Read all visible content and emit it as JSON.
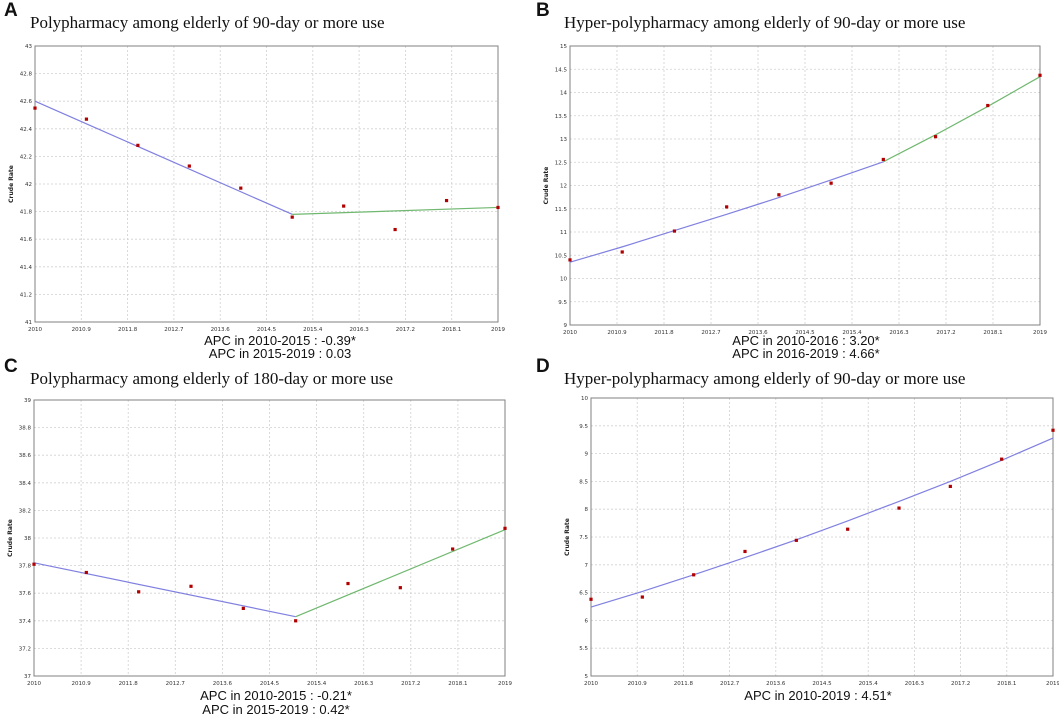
{
  "panels": [
    {
      "letter": "A",
      "title": "Polypharmacy among elderly of 90-day or more use",
      "apc_lines": [
        "APC in 2010-2015 : -0.39*",
        "APC in 2015-2019 : 0.03"
      ],
      "color_line1": "#8080e0",
      "color_line2": "#80c080"
    },
    {
      "letter": "B",
      "title": "Hyper-polypharmacy among elderly of 90-day or more use",
      "apc_lines": [
        "APC in 2010-2016 : 3.20*",
        "APC in 2016-2019 : 4.66*"
      ]
    },
    {
      "letter": "C",
      "title": "Polypharmacy among elderly of 180-day or more use",
      "apc_lines": [
        "APC in 2010-2015 : -0.21*",
        "APC in 2015-2019 : 0.42*"
      ]
    },
    {
      "letter": "D",
      "title": "Hyper-polypharmacy among elderly of 90-day or more use",
      "apc_lines": [
        "APC in 2010-2019 : 4.51*"
      ]
    }
  ],
  "colors": {
    "point": "#b00000",
    "segment1": "#8080e0",
    "segment2": "#70b870",
    "grid": "#d0d0d0",
    "frame": "#808080"
  },
  "chart_data": [
    {
      "type": "scatter",
      "title": "Polypharmacy among elderly of 90-day or more use",
      "ylabel": "Crude Rate",
      "xlabel": "",
      "xlim": [
        2010,
        2019
      ],
      "ylim": [
        41,
        43
      ],
      "xticks": [
        2010,
        2010.9,
        2011.8,
        2012.7,
        2013.6,
        2014.5,
        2015.4,
        2016.3,
        2017.2,
        2018.1,
        2019
      ],
      "xtick_labels": [
        "2010",
        "2010.9",
        "2011.8",
        "2012.7",
        "2013.6",
        "2014.5",
        "2015.4",
        "2016.3",
        "2017.2",
        "2018.1",
        "2019"
      ],
      "yticks": [
        41,
        41.2,
        41.4,
        41.6,
        41.8,
        42,
        42.2,
        42.4,
        42.6,
        42.8,
        43
      ],
      "ytick_labels": [
        "41",
        "41.2",
        "41.4",
        "41.6",
        "41.8",
        "42",
        "42.2",
        "42.4",
        "42.6",
        "42.8",
        "43"
      ],
      "points": {
        "x": [
          2010,
          2011,
          2012,
          2013,
          2014,
          2015,
          2016,
          2017,
          2018,
          2019
        ],
        "y": [
          42.55,
          42.47,
          42.28,
          42.13,
          41.97,
          41.76,
          41.84,
          41.67,
          41.88,
          41.83
        ]
      },
      "segments": [
        {
          "name": "2010-2015",
          "x": [
            2010,
            2015
          ],
          "y": [
            42.6,
            41.78
          ]
        },
        {
          "name": "2015-2019",
          "x": [
            2015,
            2019
          ],
          "y": [
            41.78,
            41.83
          ]
        }
      ]
    },
    {
      "type": "scatter",
      "title": "Hyper-polypharmacy among elderly of 90-day or more use",
      "ylabel": "Crude Rate",
      "xlabel": "",
      "xlim": [
        2010,
        2019
      ],
      "ylim": [
        9,
        15
      ],
      "xticks": [
        2010,
        2010.9,
        2011.8,
        2012.7,
        2013.6,
        2014.5,
        2015.4,
        2016.3,
        2017.2,
        2018.1,
        2019
      ],
      "xtick_labels": [
        "2010",
        "2010.9",
        "2011.8",
        "2012.7",
        "2013.6",
        "2014.5",
        "2015.4",
        "2016.3",
        "2017.2",
        "2018.1",
        "2019"
      ],
      "yticks": [
        9,
        9.5,
        10,
        10.5,
        11,
        11.5,
        12,
        12.5,
        13,
        13.5,
        14,
        14.5,
        15
      ],
      "ytick_labels": [
        "9",
        "9.5",
        "10",
        "10.5",
        "11",
        "11.5",
        "12",
        "12.5",
        "13",
        "13.5",
        "14",
        "14.5",
        "15"
      ],
      "points": {
        "x": [
          2010,
          2011,
          2012,
          2013,
          2014,
          2015,
          2016,
          2017,
          2018,
          2019
        ],
        "y": [
          10.4,
          10.57,
          11.02,
          11.54,
          11.8,
          12.05,
          12.56,
          13.05,
          13.72,
          14.37
        ]
      },
      "segments": [
        {
          "name": "2010-2016",
          "x": [
            2010,
            2011,
            2012,
            2013,
            2014,
            2015,
            2016
          ],
          "y": [
            10.35,
            10.68,
            11.03,
            11.38,
            11.74,
            12.12,
            12.51
          ]
        },
        {
          "name": "2016-2019",
          "x": [
            2016,
            2017,
            2018,
            2019
          ],
          "y": [
            12.51,
            13.09,
            13.7,
            14.34
          ]
        }
      ]
    },
    {
      "type": "scatter",
      "title": "Polypharmacy among elderly of 180-day or more use",
      "ylabel": "Crude Rate",
      "xlabel": "",
      "xlim": [
        2010,
        2019
      ],
      "ylim": [
        37,
        39
      ],
      "xticks": [
        2010,
        2010.9,
        2011.8,
        2012.7,
        2013.6,
        2014.5,
        2015.4,
        2016.3,
        2017.2,
        2018.1,
        2019
      ],
      "xtick_labels": [
        "2010",
        "2010.9",
        "2011.8",
        "2012.7",
        "2013.6",
        "2014.5",
        "2015.4",
        "2016.3",
        "2017.2",
        "2018.1",
        "2019"
      ],
      "yticks": [
        37,
        37.2,
        37.4,
        37.6,
        37.8,
        38,
        38.2,
        38.4,
        38.6,
        38.8,
        39
      ],
      "ytick_labels": [
        "37",
        "37.2",
        "37.4",
        "37.6",
        "37.8",
        "38",
        "38.2",
        "38.4",
        "38.6",
        "38.8",
        "39"
      ],
      "points": {
        "x": [
          2010,
          2011,
          2012,
          2013,
          2014,
          2015,
          2016,
          2017,
          2018,
          2019
        ],
        "y": [
          37.81,
          37.75,
          37.61,
          37.65,
          37.49,
          37.4,
          37.67,
          37.64,
          37.92,
          38.07
        ]
      },
      "segments": [
        {
          "name": "2010-2015",
          "x": [
            2010,
            2015
          ],
          "y": [
            37.82,
            37.43
          ]
        },
        {
          "name": "2015-2019",
          "x": [
            2015,
            2019
          ],
          "y": [
            37.43,
            38.06
          ]
        }
      ]
    },
    {
      "type": "scatter",
      "title": "Hyper-polypharmacy among elderly of 90-day or more use",
      "ylabel": "Crude Rate",
      "xlabel": "",
      "xlim": [
        2010,
        2019
      ],
      "ylim": [
        5,
        10
      ],
      "xticks": [
        2010,
        2010.9,
        2011.8,
        2012.7,
        2013.6,
        2014.5,
        2015.4,
        2016.3,
        2017.2,
        2018.1,
        2019
      ],
      "xtick_labels": [
        "2010",
        "2010.9",
        "2011.8",
        "2012.7",
        "2013.6",
        "2014.5",
        "2015.4",
        "2016.3",
        "2017.2",
        "2018.1",
        "2019"
      ],
      "yticks": [
        5,
        5.5,
        6,
        6.5,
        7,
        7.5,
        8,
        8.5,
        9,
        9.5,
        10
      ],
      "ytick_labels": [
        "5",
        "5.5",
        "6",
        "6.5",
        "7",
        "7.5",
        "8",
        "8.5",
        "9",
        "9.5",
        "10"
      ],
      "points": {
        "x": [
          2010,
          2011,
          2012,
          2013,
          2014,
          2015,
          2016,
          2017,
          2018,
          2019
        ],
        "y": [
          6.38,
          6.42,
          6.82,
          7.24,
          7.44,
          7.64,
          8.02,
          8.41,
          8.9,
          9.42
        ]
      },
      "segments": [
        {
          "name": "2010-2019",
          "x": [
            2010,
            2011,
            2012,
            2013,
            2014,
            2015,
            2016,
            2017,
            2018,
            2019
          ],
          "y": [
            6.24,
            6.52,
            6.82,
            7.13,
            7.45,
            7.79,
            8.14,
            8.5,
            8.88,
            9.28
          ]
        }
      ]
    }
  ]
}
